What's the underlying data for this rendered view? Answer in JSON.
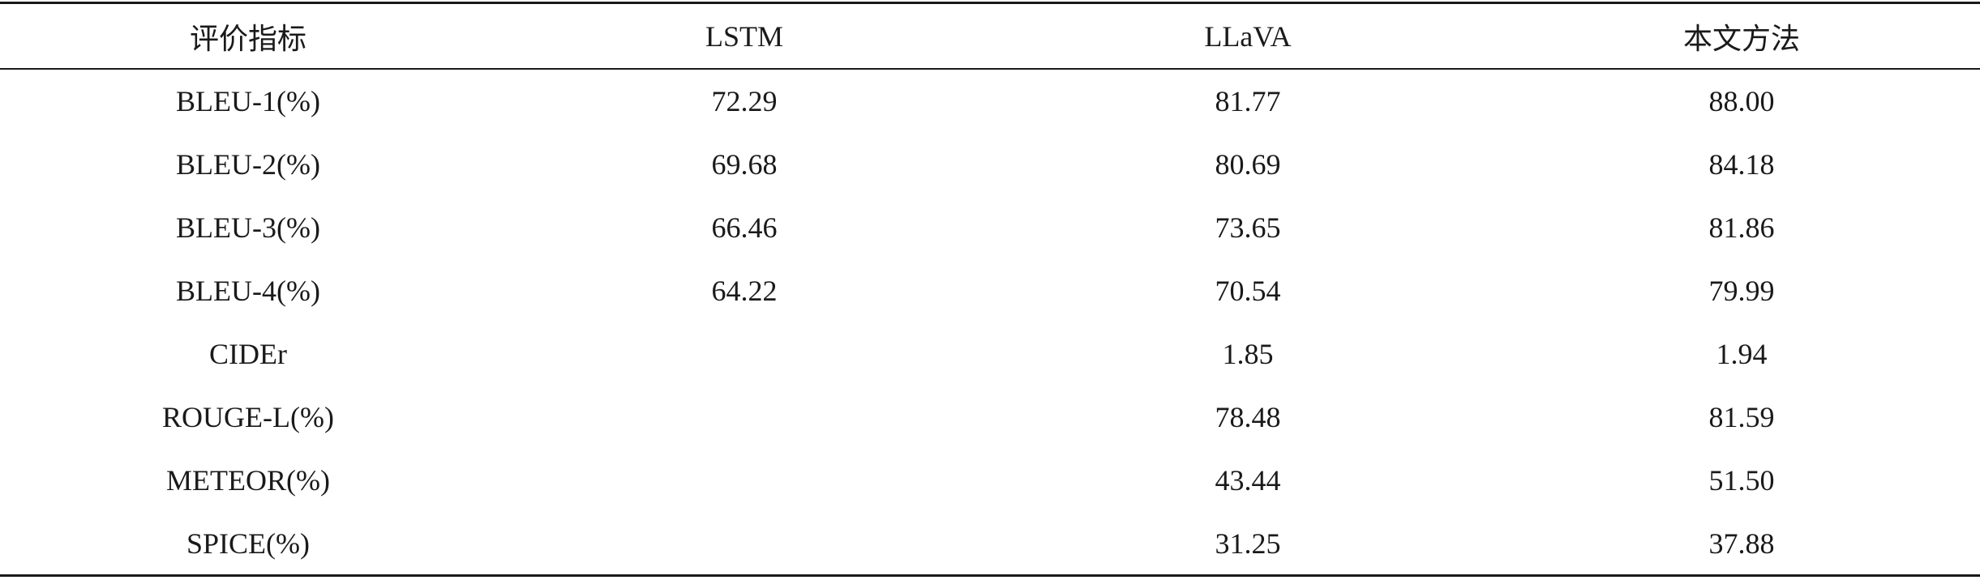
{
  "table": {
    "headers": [
      "评价指标",
      "LSTM",
      "LLaVA",
      "本文方法"
    ],
    "rows": [
      [
        "BLEU-1(%)",
        "72.29",
        "81.77",
        "88.00"
      ],
      [
        "BLEU-2(%)",
        "69.68",
        "80.69",
        "84.18"
      ],
      [
        "BLEU-3(%)",
        "66.46",
        "73.65",
        "81.86"
      ],
      [
        "BLEU-4(%)",
        "64.22",
        "70.54",
        "79.99"
      ],
      [
        "CIDEr",
        "",
        "1.85",
        "1.94"
      ],
      [
        "ROUGE-L(%)",
        "",
        "78.48",
        "81.59"
      ],
      [
        "METEOR(%)",
        "",
        "43.44",
        "51.50"
      ],
      [
        "SPICE(%)",
        "",
        "31.25",
        "37.88"
      ]
    ]
  }
}
